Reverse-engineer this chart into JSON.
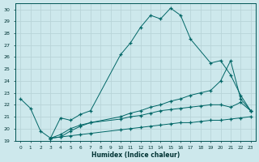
{
  "xlabel": "Humidex (Indice chaleur)",
  "background_color": "#cde8ec",
  "grid_color": "#b8d4d8",
  "line_color": "#006666",
  "xlim": [
    -0.5,
    23.5
  ],
  "ylim": [
    19,
    30.5
  ],
  "xticks": [
    0,
    1,
    2,
    3,
    4,
    5,
    6,
    7,
    8,
    9,
    10,
    11,
    12,
    13,
    14,
    15,
    16,
    17,
    18,
    19,
    20,
    21,
    22,
    23
  ],
  "yticks": [
    19,
    20,
    21,
    22,
    23,
    24,
    25,
    26,
    27,
    28,
    29,
    30
  ],
  "line1_x": [
    0,
    1,
    2,
    3,
    4,
    5,
    6,
    7,
    10,
    11,
    12,
    13,
    14,
    15,
    16,
    17,
    19,
    20,
    21,
    22,
    23
  ],
  "line1_y": [
    22.5,
    21.7,
    19.8,
    19.2,
    20.9,
    20.7,
    21.2,
    21.5,
    26.2,
    27.2,
    28.5,
    29.5,
    29.2,
    30.1,
    29.5,
    27.5,
    25.5,
    25.7,
    24.5,
    22.8,
    21.5
  ],
  "line2_x": [
    3,
    4,
    5,
    6,
    7,
    10,
    11,
    12,
    13,
    14,
    15,
    16,
    17,
    18,
    19,
    20,
    21,
    22,
    23
  ],
  "line2_y": [
    19.2,
    19.3,
    19.8,
    20.2,
    20.5,
    21.0,
    21.3,
    21.5,
    21.8,
    22.0,
    22.3,
    22.5,
    22.8,
    23.0,
    23.2,
    24.0,
    25.7,
    22.5,
    21.5
  ],
  "line3_x": [
    3,
    4,
    5,
    6,
    7,
    10,
    11,
    12,
    13,
    14,
    15,
    16,
    17,
    18,
    19,
    20,
    21,
    22,
    23
  ],
  "line3_y": [
    19.2,
    19.5,
    20.0,
    20.3,
    20.5,
    20.8,
    21.0,
    21.1,
    21.3,
    21.5,
    21.6,
    21.7,
    21.8,
    21.9,
    22.0,
    22.0,
    21.8,
    22.2,
    21.5
  ],
  "line4_x": [
    3,
    4,
    5,
    6,
    7,
    10,
    11,
    12,
    13,
    14,
    15,
    16,
    17,
    18,
    19,
    20,
    21,
    22,
    23
  ],
  "line4_y": [
    19.2,
    19.3,
    19.4,
    19.5,
    19.6,
    19.9,
    20.0,
    20.1,
    20.2,
    20.3,
    20.4,
    20.5,
    20.5,
    20.6,
    20.7,
    20.7,
    20.8,
    20.9,
    21.0
  ]
}
